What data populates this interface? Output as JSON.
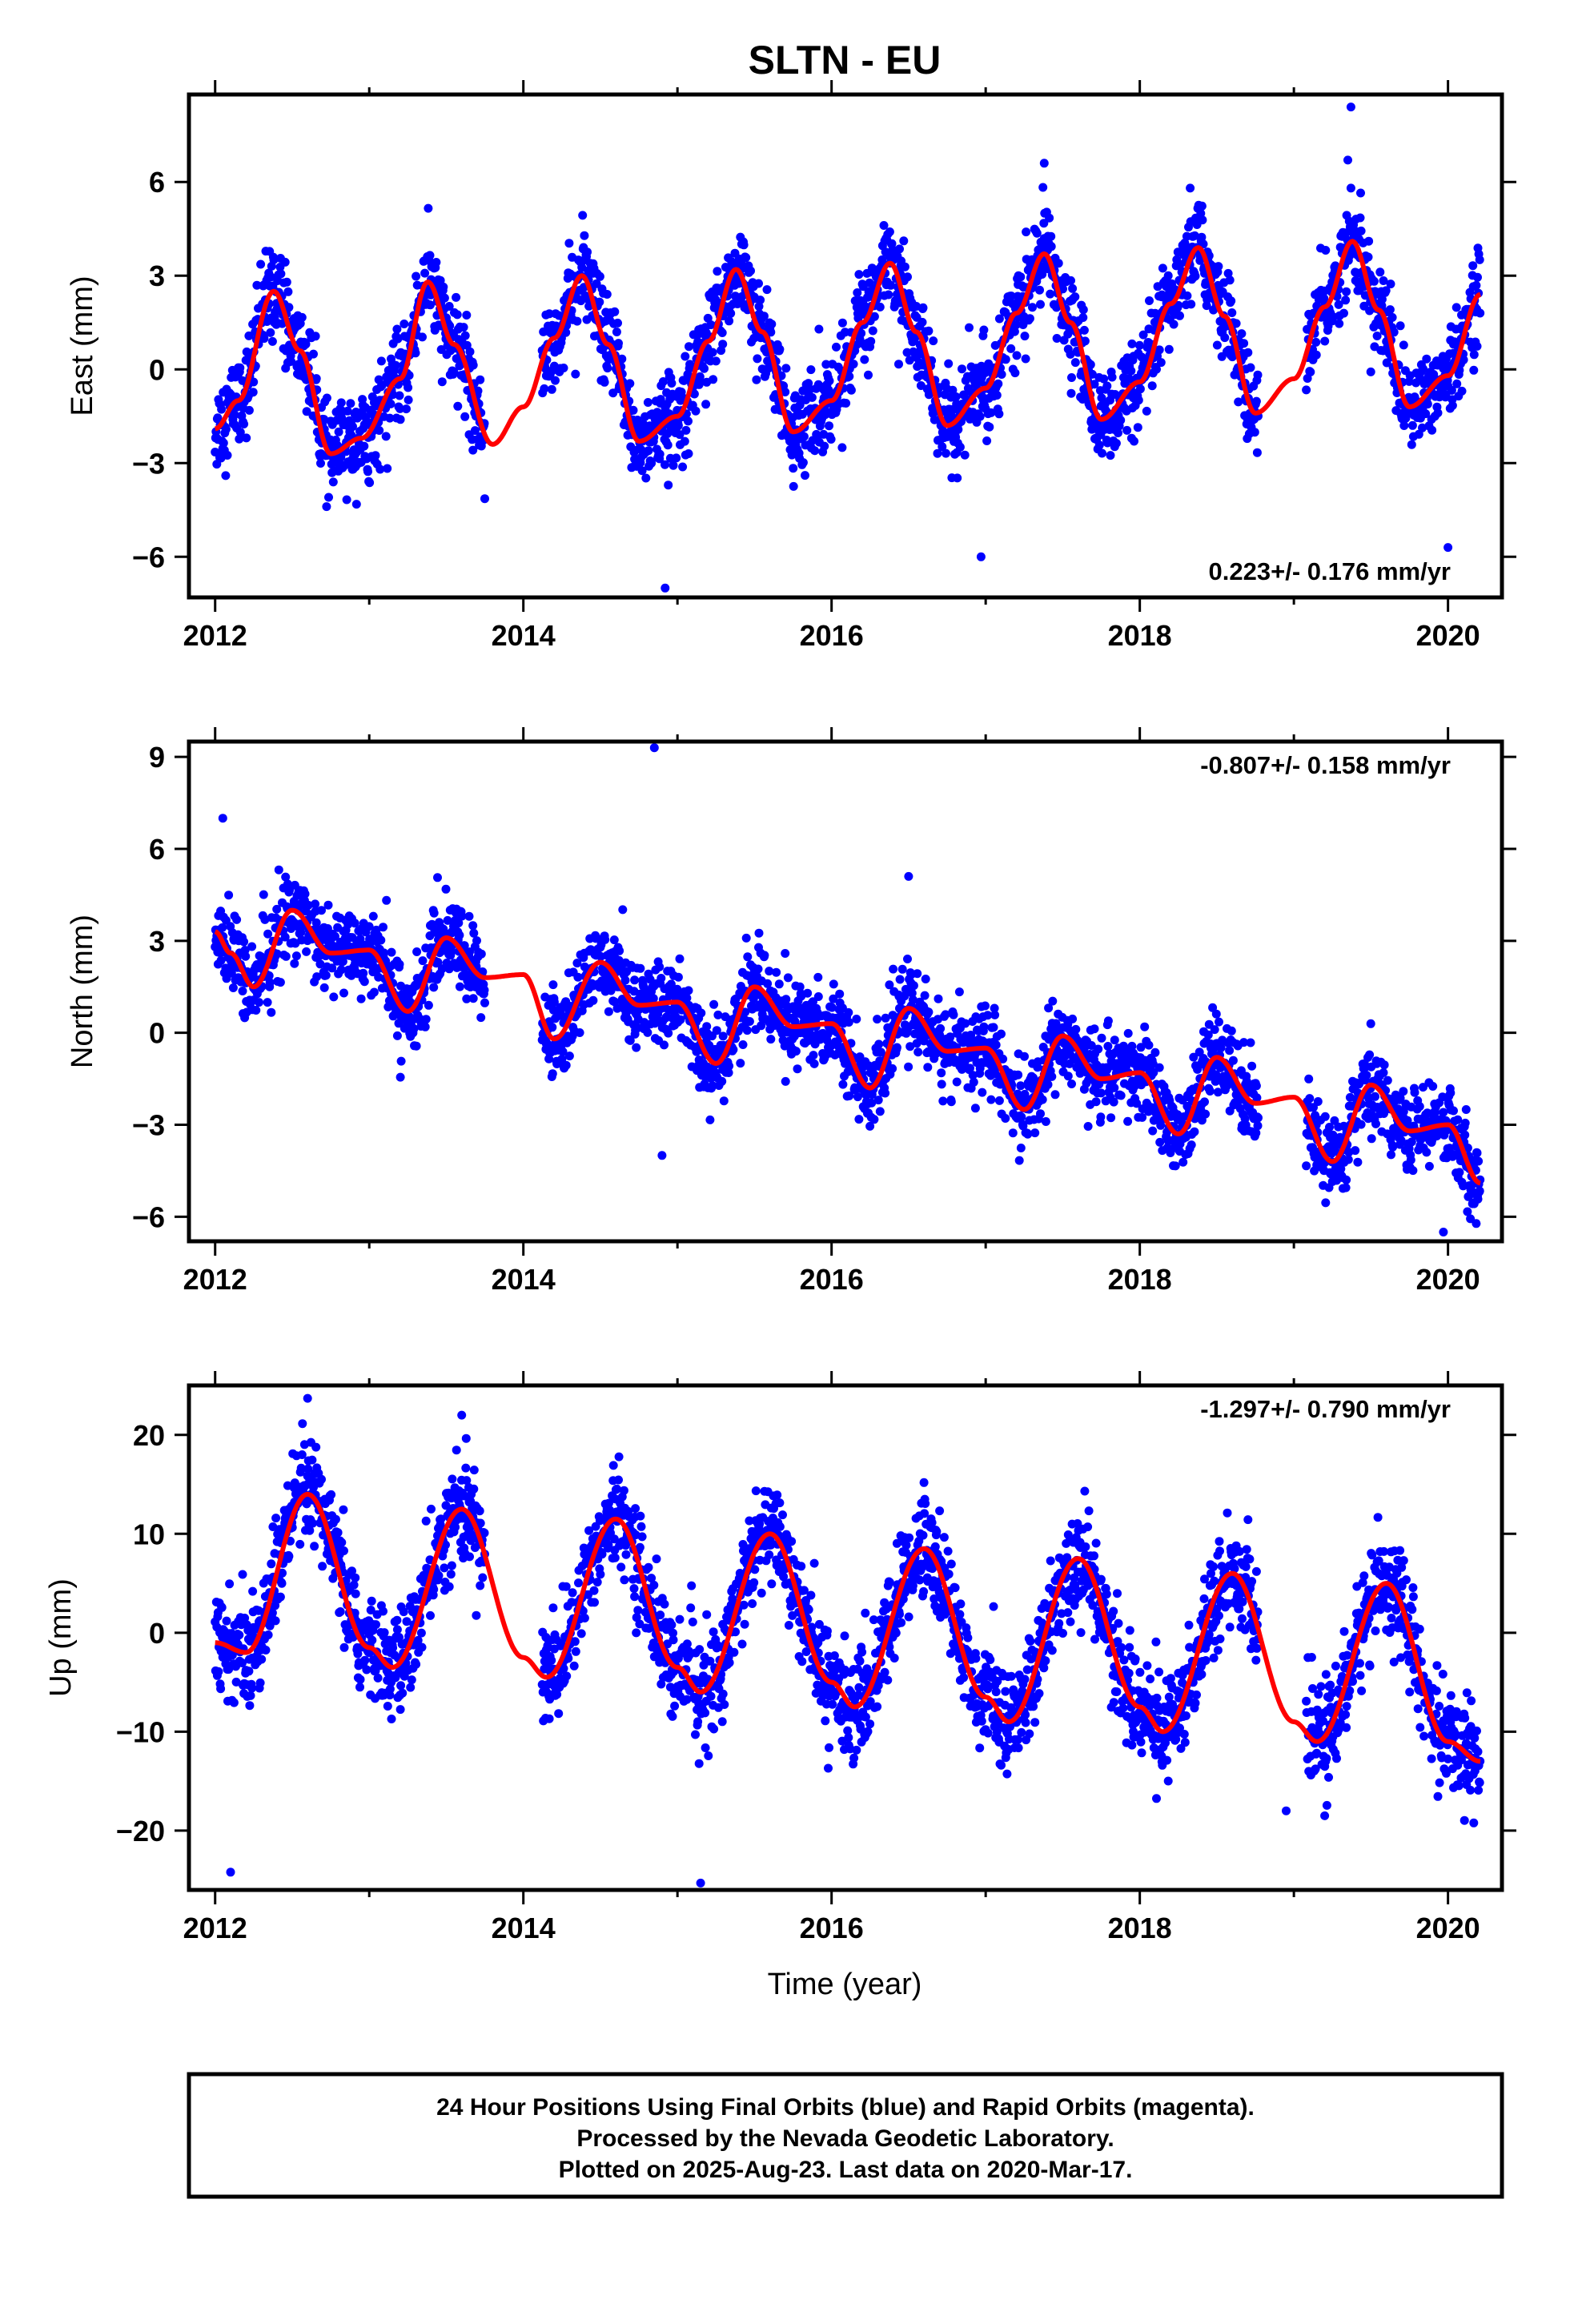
{
  "colors": {
    "points": "#0000ff",
    "model": "#ff0000",
    "frame": "#000000",
    "background": "#ffffff"
  },
  "footer": {
    "line1": "24 Hour Positions Using Final Orbits (blue) and Rapid Orbits (magenta).",
    "line2": "Processed by the Nevada Geodetic Laboratory.",
    "line3": "Plotted on 2025-Aug-23. Last data on 2020-Mar-17."
  },
  "chart_data": [
    {
      "type": "scatter",
      "title": "SLTN - EU",
      "xlabel": "",
      "ylabel": "East (mm)",
      "xlim": [
        2011.83,
        2020.35
      ],
      "ylim": [
        -7.3,
        8.8
      ],
      "x_ticks": [
        2012,
        2014,
        2016,
        2018,
        2020
      ],
      "y_ticks": [
        -6,
        -3,
        0,
        3,
        6
      ],
      "annotation": "0.223+/- 0.176 mm/yr",
      "grid": false,
      "series": [
        {
          "kind": "daily-positions",
          "color": "#0000ff",
          "trend": 0.223,
          "amplitude": 2.9,
          "phase_year": 2012.38,
          "scatter": 1.0,
          "start": 2012.0,
          "end": 2020.21,
          "gaps": [
            [
              2013.75,
              2014.12
            ],
            [
              2018.77,
              2019.08
            ]
          ],
          "outliers": [
            [
              2019.37,
              8.4
            ],
            [
              2014.92,
              -7.0
            ],
            [
              2016.97,
              -6.0
            ],
            [
              2020.0,
              -5.7
            ],
            [
              2017.38,
              6.6
            ],
            [
              2019.35,
              6.7
            ]
          ]
        },
        {
          "kind": "model",
          "color": "#ff0000",
          "x": [
            2012.0,
            2012.15,
            2012.38,
            2012.55,
            2012.75,
            2012.95,
            2013.2,
            2013.38,
            2013.55,
            2013.8,
            2014.0,
            2014.2,
            2014.38,
            2014.55,
            2014.75,
            2015.0,
            2015.2,
            2015.38,
            2015.55,
            2015.75,
            2016.0,
            2016.2,
            2016.38,
            2016.55,
            2016.75,
            2017.0,
            2017.2,
            2017.38,
            2017.55,
            2017.75,
            2018.0,
            2018.2,
            2018.38,
            2018.55,
            2018.75,
            2019.0,
            2019.2,
            2019.38,
            2019.55,
            2019.75,
            2020.0,
            2020.21
          ],
          "y": [
            -1.9,
            -1.0,
            2.5,
            0.6,
            -2.7,
            -2.2,
            -0.3,
            2.8,
            0.8,
            -2.4,
            -1.2,
            1.0,
            3.0,
            0.8,
            -2.3,
            -1.5,
            0.9,
            3.2,
            1.2,
            -2.0,
            -1.0,
            1.5,
            3.4,
            1.2,
            -1.8,
            -0.6,
            1.8,
            3.7,
            1.5,
            -1.6,
            -0.4,
            2.1,
            3.9,
            1.7,
            -1.4,
            -0.3,
            2.0,
            4.1,
            1.9,
            -1.2,
            -0.2,
            2.4
          ]
        }
      ]
    },
    {
      "type": "scatter",
      "title": "",
      "xlabel": "",
      "ylabel": "North (mm)",
      "xlim": [
        2011.83,
        2020.35
      ],
      "ylim": [
        -6.8,
        9.5
      ],
      "x_ticks": [
        2012,
        2014,
        2016,
        2018,
        2020
      ],
      "y_ticks": [
        -6,
        -3,
        0,
        3,
        6,
        9
      ],
      "annotation": "-0.807+/- 0.158 mm/yr",
      "grid": false,
      "series": [
        {
          "kind": "daily-positions",
          "color": "#0000ff",
          "trend": -0.807,
          "amplitude": 1.3,
          "phase_year": 2012.5,
          "scatter": 0.95,
          "start": 2012.0,
          "end": 2020.21,
          "gaps": [
            [
              2013.75,
              2014.12
            ],
            [
              2018.77,
              2019.08
            ]
          ],
          "outliers": [
            [
              2014.85,
              9.3
            ],
            [
              2012.05,
              7.0
            ],
            [
              2014.9,
              -4.0
            ],
            [
              2019.97,
              -6.5
            ],
            [
              2016.5,
              5.1
            ]
          ]
        },
        {
          "kind": "model",
          "color": "#ff0000",
          "x": [
            2012.0,
            2012.1,
            2012.25,
            2012.5,
            2012.75,
            2013.0,
            2013.25,
            2013.5,
            2013.75,
            2014.0,
            2014.2,
            2014.5,
            2014.75,
            2015.0,
            2015.25,
            2015.5,
            2015.75,
            2016.0,
            2016.25,
            2016.5,
            2016.75,
            2017.0,
            2017.25,
            2017.5,
            2017.75,
            2018.0,
            2018.25,
            2018.5,
            2018.75,
            2019.0,
            2019.25,
            2019.5,
            2019.75,
            2020.0,
            2020.21
          ],
          "y": [
            3.3,
            2.6,
            1.5,
            4.0,
            2.6,
            2.7,
            0.7,
            3.1,
            1.8,
            1.9,
            -0.2,
            2.3,
            0.9,
            1.0,
            -1.0,
            1.5,
            0.2,
            0.3,
            -1.8,
            0.8,
            -0.6,
            -0.5,
            -2.5,
            -0.1,
            -1.5,
            -1.3,
            -3.3,
            -0.8,
            -2.3,
            -2.1,
            -4.2,
            -1.7,
            -3.2,
            -3.0,
            -4.9
          ]
        }
      ]
    },
    {
      "type": "scatter",
      "title": "",
      "xlabel": "Time (year)",
      "ylabel": "Up (mm)",
      "xlim": [
        2011.83,
        2020.35
      ],
      "ylim": [
        -26,
        25
      ],
      "x_ticks": [
        2012,
        2014,
        2016,
        2018,
        2020
      ],
      "y_ticks": [
        -20,
        -10,
        0,
        10,
        20
      ],
      "annotation": "-1.297+/- 0.790 mm/yr",
      "grid": false,
      "series": [
        {
          "kind": "daily-positions",
          "color": "#0000ff",
          "trend": -1.297,
          "amplitude": 9.0,
          "phase_year": 2012.6,
          "scatter": 3.6,
          "start": 2012.0,
          "end": 2020.21,
          "gaps": [
            [
              2013.75,
              2014.12
            ],
            [
              2018.77,
              2019.08
            ]
          ],
          "outliers": [
            [
              2012.1,
              -24.2
            ],
            [
              2015.15,
              -25.3
            ],
            [
              2012.6,
              23.7
            ],
            [
              2013.6,
              22.0
            ],
            [
              2019.2,
              -18.5
            ],
            [
              2018.95,
              -18.0
            ]
          ]
        },
        {
          "kind": "model",
          "color": "#ff0000",
          "x": [
            2012.0,
            2012.2,
            2012.6,
            2013.0,
            2013.15,
            2013.6,
            2014.0,
            2014.15,
            2014.6,
            2015.0,
            2015.15,
            2015.6,
            2016.0,
            2016.15,
            2016.6,
            2017.0,
            2017.15,
            2017.6,
            2018.0,
            2018.15,
            2018.6,
            2019.0,
            2019.15,
            2019.6,
            2020.0,
            2020.21
          ],
          "y": [
            -1.0,
            -2.0,
            14.0,
            -1.5,
            -3.5,
            12.5,
            -2.5,
            -4.5,
            11.5,
            -3.5,
            -6.0,
            10.0,
            -5.0,
            -7.5,
            8.5,
            -6.5,
            -9.0,
            7.5,
            -7.5,
            -10.0,
            6.0,
            -9.0,
            -11.0,
            5.0,
            -11.0,
            -13.0
          ]
        }
      ]
    }
  ]
}
